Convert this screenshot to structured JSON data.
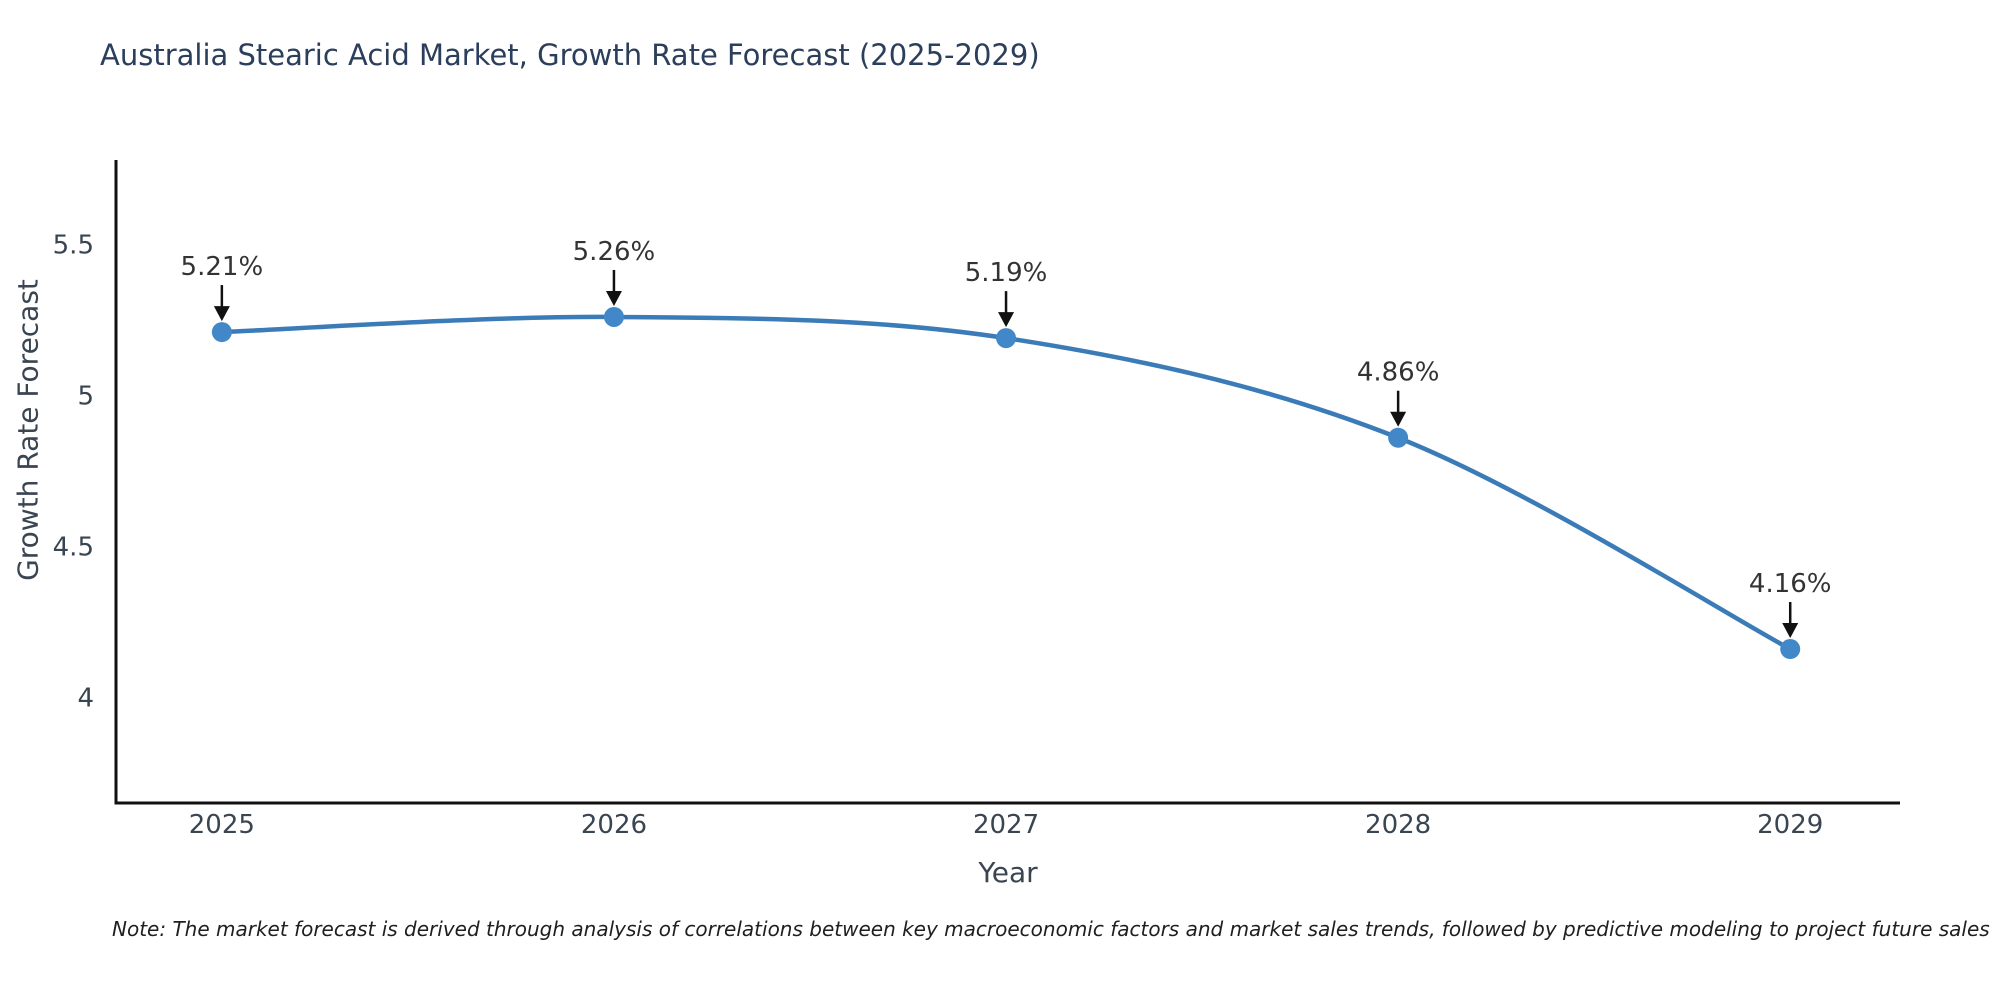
{
  "note": "Note: The market forecast is derived through analysis of correlations between key macroeconomic factors and market sales trends, followed by predictive modeling to project future sales",
  "chart_data": {
    "type": "line",
    "title": "Australia Stearic Acid Market, Growth Rate Forecast (2025-2029)",
    "xlabel": "Year",
    "ylabel": "Growth Rate Forecast",
    "x": [
      2025,
      2026,
      2027,
      2028,
      2029
    ],
    "values": [
      5.21,
      5.26,
      5.19,
      4.86,
      4.16
    ],
    "point_labels": [
      "5.21%",
      "5.26%",
      "5.19%",
      "4.86%",
      "4.16%"
    ],
    "yticks": [
      4,
      4.5,
      5,
      5.5
    ],
    "ylim": [
      3.65,
      5.78
    ],
    "xlim": [
      2024.73,
      2029.28
    ],
    "grid": false,
    "legend": "none",
    "line_color": "#3b7cb8",
    "marker_color": "#4288c8",
    "arrow_color": "#111111",
    "axis_line_color": "#111111",
    "tick_label_color": "#3a4552",
    "annotation_text_color": "#333333",
    "title_color": "#2b3e5c"
  }
}
